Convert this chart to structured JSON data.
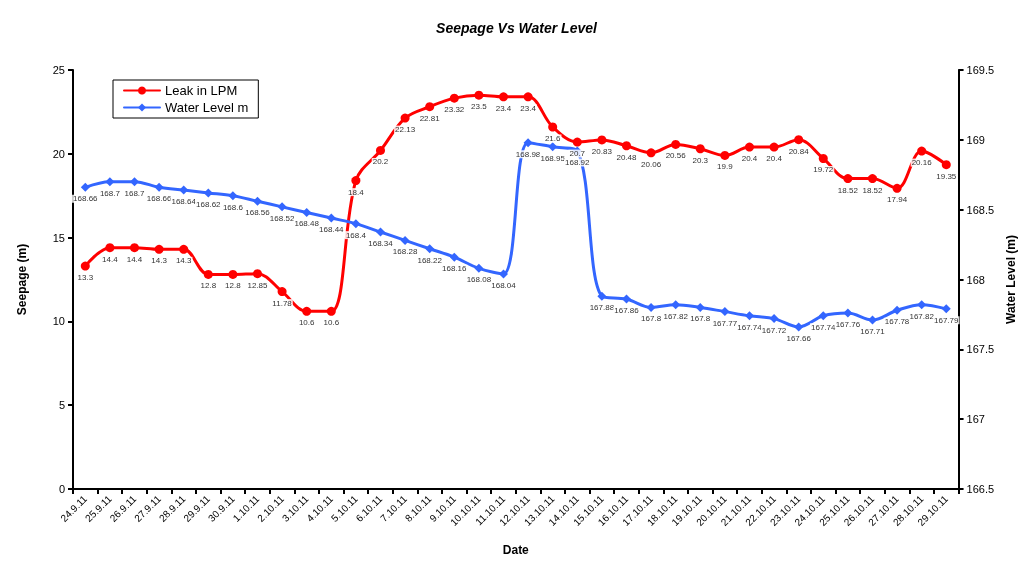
{
  "chart_data": {
    "type": "line",
    "title": "Seepage Vs Water Level",
    "xlabel": "Date",
    "ylabel": "Seepage (m)",
    "y2label": "Water Level (m)",
    "categories": [
      "24.9.11",
      "25.9.11",
      "26.9.11",
      "27.9.11",
      "28.9.11",
      "29.9.11",
      "30.9.11",
      "1.10.11",
      "2.10.11",
      "3.10.11",
      "4.10.11",
      "5.10.11",
      "6.10.11",
      "7.10.11",
      "8.10.11",
      "9.10.11",
      "10.10.11",
      "11.10.11",
      "12.10.11",
      "13.10.11",
      "14.10.11",
      "15.10.11",
      "16.10.11",
      "17.10.11",
      "18.10.11",
      "19.10.11",
      "20.10.11",
      "21.10.11",
      "22.10.11",
      "23.10.11",
      "24.10.11",
      "25.10.11",
      "26.10.11",
      "27.10.11",
      "28.10.11",
      "29.10.11"
    ],
    "series": [
      {
        "name": "Leak in LPM",
        "color": "#ff0000",
        "marker": "circle",
        "values": [
          13.3,
          14.4,
          14.4,
          14.3,
          14.3,
          12.8,
          12.8,
          12.85,
          11.78,
          10.6,
          10.6,
          18.4,
          20.2,
          22.13,
          22.81,
          23.32,
          23.5,
          23.4,
          23.4,
          21.6,
          20.7,
          20.83,
          20.48,
          20.06,
          20.56,
          20.3,
          19.9,
          20.4,
          20.4,
          20.84,
          19.72,
          18.52,
          18.52,
          17.94,
          20.16,
          19.35
        ]
      },
      {
        "name": "Water Level m",
        "color": "#3366ff",
        "marker": "diamond",
        "axis": "y2",
        "values": [
          168.66,
          168.7,
          168.7,
          168.66,
          168.64,
          168.62,
          168.6,
          168.56,
          168.52,
          168.48,
          168.44,
          168.4,
          168.34,
          168.28,
          168.22,
          168.16,
          168.08,
          168.04,
          168.98,
          168.95,
          168.92,
          167.88,
          167.86,
          167.8,
          167.82,
          167.8,
          167.77,
          167.74,
          167.72,
          167.66,
          167.74,
          167.76,
          167.71,
          167.78,
          167.82,
          167.79
        ]
      }
    ],
    "ylim": [
      0,
      25
    ],
    "yticks": [
      0,
      5,
      10,
      15,
      20,
      25
    ],
    "y2lim": [
      166.5,
      169.5
    ],
    "y2ticks": [
      166.5,
      167,
      167.5,
      168,
      168.5,
      169,
      169.5
    ],
    "data_labels": true,
    "legend": "top left",
    "grid": false,
    "line_style": "solid"
  }
}
